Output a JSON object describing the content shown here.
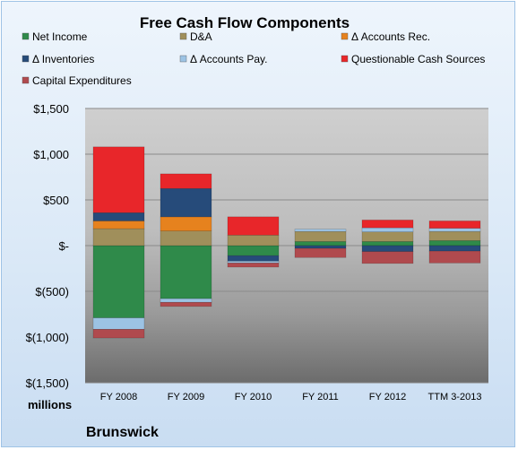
{
  "chart_data": {
    "type": "bar",
    "stacked": true,
    "title": "Free Cash Flow Components",
    "units_label": "millions",
    "company_label": "Brunswick",
    "legend_placement": "top",
    "grid": true,
    "ylim": [
      -1500,
      1500
    ],
    "yticks": [
      1500,
      1000,
      500,
      0,
      -500,
      -1000,
      -1500
    ],
    "ytick_labels": [
      "$1,500",
      "$1,000",
      "$500",
      "$-",
      "$(500)",
      "$(1,000)",
      "$(1,500)"
    ],
    "categories": [
      "FY 2008",
      "FY 2009",
      "FY 2010",
      "FY 2011",
      "FY 2012",
      "TTM 3-2013"
    ],
    "series": [
      {
        "name": "Net Income",
        "color": "#2f8a4a",
        "values": [
          -790,
          -580,
          -110,
          45,
          45,
          55
        ]
      },
      {
        "name": "D&A",
        "color": "#a08f5b",
        "values": [
          185,
          160,
          115,
          110,
          105,
          100
        ]
      },
      {
        "name": "Δ Accounts Rec.",
        "color": "#e6821e",
        "values": [
          85,
          155,
          0,
          0,
          0,
          0
        ]
      },
      {
        "name": "Δ Inventories",
        "color": "#264b7a",
        "values": [
          90,
          310,
          -60,
          -30,
          -65,
          -60
        ]
      },
      {
        "name": "Δ Accounts Pay.",
        "color": "#9cc3e4",
        "values": [
          -125,
          -40,
          -20,
          25,
          45,
          35
        ]
      },
      {
        "name": "Questionable Cash Sources",
        "color": "#e8262a",
        "values": [
          720,
          160,
          200,
          0,
          85,
          80
        ]
      },
      {
        "name": "Capital Expenditures",
        "color": "#b04a4e",
        "values": [
          -95,
          -45,
          -45,
          -100,
          -130,
          -130
        ]
      }
    ]
  }
}
